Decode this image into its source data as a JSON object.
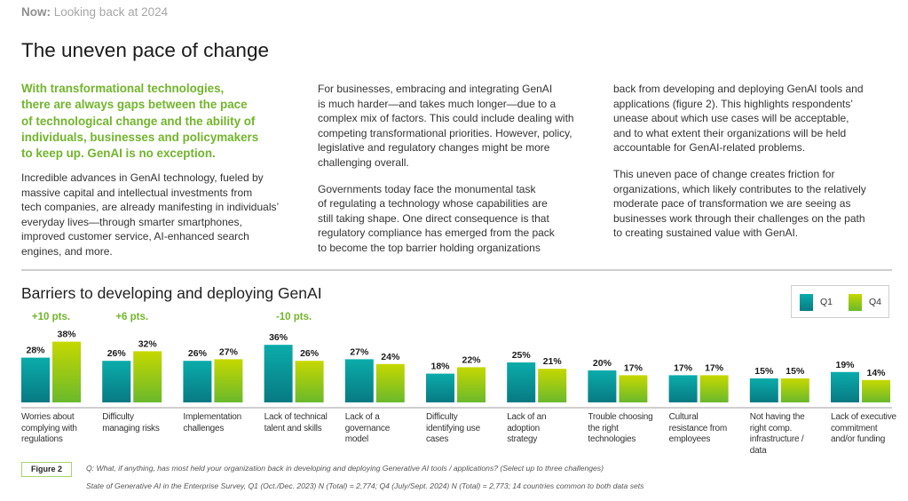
{
  "header": {
    "kicker_bold": "Now:",
    "kicker_rest": "Looking back at 2024",
    "title": "The uneven pace of change"
  },
  "intro": {
    "lead": "With transformational technologies,\nthere are always gaps between the pace\nof technological change and the ability of\nindividuals, businesses and policymakers\nto keep up. GenAI is no exception.",
    "body": "Incredible advances in GenAI technology, fueled by\nmassive capital and intellectual investments from\ntech companies, are already manifesting in individuals’\neveryday lives—through smarter smartphones,\nimproved customer service, AI-enhanced search\nengines, and more."
  },
  "columns": [
    {
      "paragraphs": [
        "For businesses, embracing and integrating GenAI\nis much harder—and takes much longer—due to a\ncomplex mix of factors. This could include dealing with\ncompeting transformational priorities. However, policy,\nlegislative and regulatory changes might be more\nchallenging overall.",
        "Governments today face the monumental task\nof regulating a technology whose capabilities are\nstill taking shape. One direct consequence is that\nregulatory compliance has emerged from the pack\nto become the top barrier holding organizations"
      ]
    },
    {
      "paragraphs": [
        "back from developing and deploying GenAI tools and\napplications (figure 2). This highlights respondents’\nunease about which use cases will be acceptable,\nand to what extent their organizations will be held\naccountable for GenAI-related problems.",
        "This uneven pace of change creates friction for\norganizations, which likely contributes to the relatively\nmoderate pace of transformation we are seeing as\nbusinesses work through their challenges on the path\nto creating sustained value with GenAI."
      ]
    }
  ],
  "chart_data": {
    "type": "bar",
    "title": "Barriers to developing and deploying GenAI",
    "xlabel": "",
    "ylabel": "",
    "grid": false,
    "legend_position": "top-right",
    "value_suffix": "%",
    "categories": [
      "Worries about\ncomplying with\nregulations",
      "Difficulty\nmanaging risks",
      "Implementation\nchallenges",
      "Lack of technical\ntalent and skills",
      "Lack of a\ngovernance\nmodel",
      "Difficulty\nidentifying use\ncases",
      "Lack of an\nadoption\nstrategy",
      "Trouble choosing\nthe right\ntechnologies",
      "Cultural\nresistance from\nemployees",
      "Not having the\nright comp.\ninfrastructure /\ndata",
      "Lack of executive\ncommitment\nand/or funding"
    ],
    "series": [
      {
        "name": "Q1",
        "color_top": "#0aacaa",
        "color_bottom": "#087a83",
        "values": [
          28,
          26,
          26,
          36,
          27,
          18,
          25,
          20,
          17,
          15,
          19
        ]
      },
      {
        "name": "Q4",
        "color_top": "#c6d800",
        "color_bottom": "#6ab92c",
        "values": [
          38,
          32,
          27,
          26,
          24,
          22,
          21,
          17,
          17,
          15,
          14
        ]
      }
    ],
    "annotations": [
      {
        "category_index": 0,
        "text": "+10 pts."
      },
      {
        "category_index": 1,
        "text": "+6 pts."
      },
      {
        "category_index": 3,
        "text": "-10 pts."
      }
    ],
    "annotation_color": "#72b52c"
  },
  "figure": {
    "label": "Figure 2",
    "question": "Q: What, if anything, has most held your organization back in developing and deploying Generative AI tools / applications? (Select up to three challenges)",
    "source": "State of Generative AI in the Enterprise Survey, Q1 (Oct./Dec. 2023) N (Total) = 2,774; Q4 (July/Sept. 2024) N (Total) = 2,773; 14 countries common to both data sets"
  }
}
